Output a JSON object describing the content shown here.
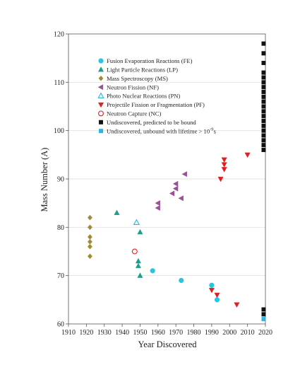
{
  "chart_data": {
    "type": "scatter",
    "title": "",
    "xlabel": "Year Discovered",
    "ylabel": "Mass Number (A)",
    "xlim": [
      1910,
      2020
    ],
    "ylim": [
      60,
      120
    ],
    "xticks": [
      1910,
      1920,
      1930,
      1940,
      1950,
      1960,
      1970,
      1980,
      1990,
      2000,
      2010,
      2020
    ],
    "yticks": [
      60,
      70,
      80,
      90,
      100,
      110,
      120
    ],
    "grid": "horizontal",
    "legend_position": "top-left",
    "series": [
      {
        "name": "Fusion Evaporation Reactions (FE)",
        "marker": "circle",
        "filled": true,
        "color": "#29c4e0",
        "points": [
          [
            1957,
            71
          ],
          [
            1973,
            69
          ],
          [
            1990,
            68
          ],
          [
            1993,
            65
          ]
        ]
      },
      {
        "name": "Light Particle Reactions (LP)",
        "marker": "triangle-up",
        "filled": true,
        "color": "#1f9c8c",
        "points": [
          [
            1937,
            83
          ],
          [
            1950,
            79
          ],
          [
            1949,
            73
          ],
          [
            1949,
            72
          ],
          [
            1950,
            70
          ]
        ]
      },
      {
        "name": "Mass Spectroscopy (MS)",
        "marker": "diamond",
        "filled": true,
        "color": "#a08b30",
        "points": [
          [
            1922,
            82
          ],
          [
            1922,
            80
          ],
          [
            1922,
            78
          ],
          [
            1922,
            77
          ],
          [
            1922,
            76
          ],
          [
            1922,
            74
          ]
        ]
      },
      {
        "name": "Neutron Fission (NF)",
        "marker": "triangle-left",
        "filled": true,
        "color": "#9b4f96",
        "points": [
          [
            1975,
            91
          ],
          [
            1970,
            89
          ],
          [
            1970,
            88
          ],
          [
            1968,
            87
          ],
          [
            1973,
            86
          ],
          [
            1960,
            85
          ],
          [
            1960,
            84
          ]
        ]
      },
      {
        "name": "Photo Nuclear Reactions (PN)",
        "marker": "triangle-up",
        "filled": false,
        "color": "#29b6e0",
        "points": [
          [
            1948,
            81
          ]
        ]
      },
      {
        "name": "Projectile Fission or Fragmentation (PF)",
        "marker": "triangle-down",
        "filled": true,
        "color": "#e02020",
        "points": [
          [
            2010,
            95
          ],
          [
            1997,
            94
          ],
          [
            1997,
            93
          ],
          [
            1997,
            92
          ],
          [
            1995,
            90
          ],
          [
            1990,
            67
          ],
          [
            1993,
            66
          ],
          [
            2004,
            64
          ]
        ]
      },
      {
        "name": "Neutron Capture (NC)",
        "marker": "circle",
        "filled": false,
        "color": "#e02020",
        "points": [
          [
            1947,
            75
          ]
        ]
      },
      {
        "name": "Undiscovered, predicted to be bound",
        "marker": "square",
        "filled": true,
        "color": "#111111",
        "points": [
          [
            2019,
            118
          ],
          [
            2019,
            116
          ],
          [
            2019,
            114
          ],
          [
            2019,
            112
          ],
          [
            2019,
            111
          ],
          [
            2019,
            110
          ],
          [
            2019,
            109
          ],
          [
            2019,
            108
          ],
          [
            2019,
            107
          ],
          [
            2019,
            106
          ],
          [
            2019,
            105
          ],
          [
            2019,
            104
          ],
          [
            2019,
            103
          ],
          [
            2019,
            102
          ],
          [
            2019,
            101
          ],
          [
            2019,
            100
          ],
          [
            2019,
            99
          ],
          [
            2019,
            98
          ],
          [
            2019,
            97
          ],
          [
            2019,
            96
          ],
          [
            2019,
            63
          ],
          [
            2019,
            62
          ]
        ]
      },
      {
        "name": "Undiscovered, unbound with lifetime > 10",
        "name_superscript": "-9",
        "name_suffix": "s",
        "marker": "square",
        "filled": true,
        "color": "#29b6e0",
        "points": [
          [
            2019,
            61
          ]
        ]
      }
    ]
  }
}
